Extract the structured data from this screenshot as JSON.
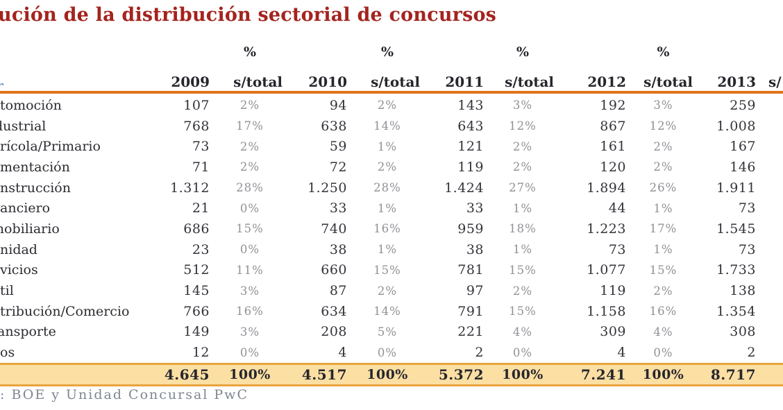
{
  "title": "ución de la distribución sectorial de concursos",
  "header": {
    "pct_symbol": "%",
    "years": [
      "2009",
      "2010",
      "2011",
      "2012",
      "2013"
    ],
    "pct_label": "s/total",
    "pct_label_cut": "s/",
    "label_fragment": "r"
  },
  "rows": [
    {
      "label": "tomoción",
      "values": [
        "107",
        "2%",
        "94",
        "2%",
        "143",
        "3%",
        "192",
        "3%",
        "259"
      ]
    },
    {
      "label": "dustrial",
      "values": [
        "768",
        "17%",
        "638",
        "14%",
        "643",
        "12%",
        "867",
        "12%",
        "1.008"
      ]
    },
    {
      "label": "rícola/Primario",
      "values": [
        "73",
        "2%",
        "59",
        "1%",
        "121",
        "2%",
        "161",
        "2%",
        "167"
      ]
    },
    {
      "label": "mentación",
      "values": [
        "71",
        "2%",
        "72",
        "2%",
        "119",
        "2%",
        "120",
        "2%",
        "146"
      ]
    },
    {
      "label": "nstrucción",
      "values": [
        "1.312",
        "28%",
        "1.250",
        "28%",
        "1.424",
        "27%",
        "1.894",
        "26%",
        "1.911"
      ]
    },
    {
      "label": "anciero",
      "values": [
        "21",
        "0%",
        "33",
        "1%",
        "33",
        "1%",
        "44",
        "1%",
        "73"
      ]
    },
    {
      "label": "mobiliario",
      "values": [
        "686",
        "15%",
        "740",
        "16%",
        "959",
        "18%",
        "1.223",
        "17%",
        "1.545"
      ]
    },
    {
      "label": "nidad",
      "values": [
        "23",
        "0%",
        "38",
        "1%",
        "38",
        "1%",
        "73",
        "1%",
        "73"
      ]
    },
    {
      "label": "vicios",
      "values": [
        "512",
        "11%",
        "660",
        "15%",
        "781",
        "15%",
        "1.077",
        "15%",
        "1.733"
      ]
    },
    {
      "label": "til",
      "values": [
        "145",
        "3%",
        "87",
        "2%",
        "97",
        "2%",
        "119",
        "2%",
        "138"
      ]
    },
    {
      "label": "tribución/Comercio",
      "values": [
        "766",
        "16%",
        "634",
        "14%",
        "791",
        "15%",
        "1.158",
        "16%",
        "1.354"
      ]
    },
    {
      "label": "ansporte",
      "values": [
        "149",
        "3%",
        "208",
        "5%",
        "221",
        "4%",
        "309",
        "4%",
        "308"
      ]
    },
    {
      "label": "os",
      "values": [
        "12",
        "0%",
        "4",
        "0%",
        "2",
        "0%",
        "4",
        "0%",
        "2"
      ]
    }
  ],
  "total": {
    "label": "",
    "values": [
      "4.645",
      "100%",
      "4.517",
      "100%",
      "5.372",
      "100%",
      "7.241",
      "100%",
      "8.717"
    ]
  },
  "footer": ": BOE y Unidad Concursal PwC",
  "colors": {
    "title_red": "#A3241F",
    "rule_orange": "#E0731C",
    "total_border": "#E9A33C",
    "total_background": "#FBDFA3",
    "value_ink": "#33333A",
    "percent_gray": "#919196",
    "footer_gray": "#7E868F"
  }
}
